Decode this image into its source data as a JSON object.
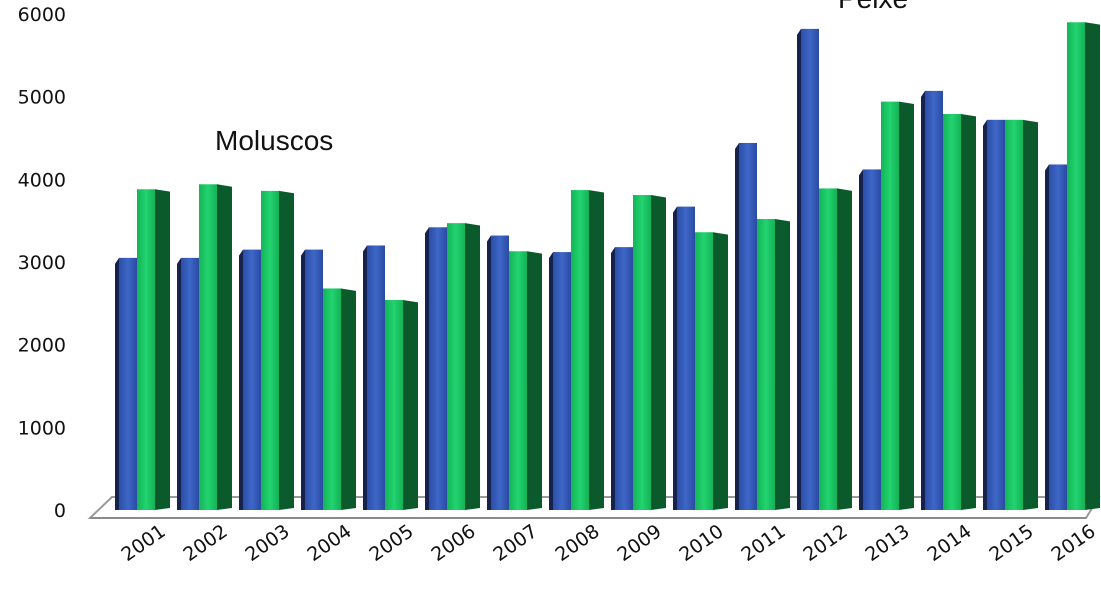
{
  "chart_data": {
    "type": "bar",
    "title": "",
    "xlabel": "",
    "ylabel": "",
    "ylim": [
      0,
      6000
    ],
    "yticks": [
      0,
      1000,
      2000,
      3000,
      4000,
      5000,
      6000
    ],
    "grid": false,
    "legend": "none",
    "categories": [
      "2001",
      "2002",
      "2003",
      "2004",
      "2005",
      "2006",
      "2007",
      "2008",
      "2009",
      "2010",
      "2011",
      "2012",
      "2013",
      "2014",
      "2015",
      "2016"
    ],
    "series": [
      {
        "color": "#2f55b0",
        "values": [
          3050,
          3050,
          3150,
          3150,
          3200,
          3420,
          3320,
          3120,
          3180,
          3670,
          4440,
          5820,
          4120,
          5070,
          4720,
          4180
        ]
      },
      {
        "color": "#19c464",
        "values": [
          3880,
          3940,
          3860,
          2680,
          2540,
          3470,
          3130,
          3870,
          3810,
          3360,
          3520,
          3890,
          4940,
          4790,
          4720,
          5900
        ]
      }
    ],
    "annotations": [
      {
        "text": "Moluscos",
        "position": "upper-left"
      },
      {
        "text": "Peixe",
        "position": "top-right"
      }
    ]
  }
}
